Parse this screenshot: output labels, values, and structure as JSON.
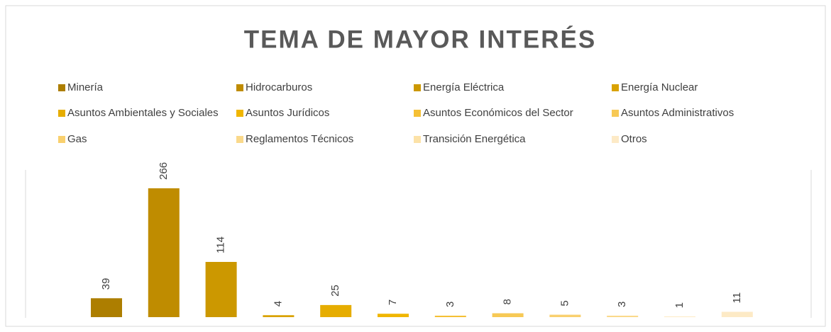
{
  "chart_data": {
    "type": "bar",
    "title": "TEMA DE MAYOR INTERÉS",
    "series": [
      {
        "name": "Minería",
        "color": "#ad7e00",
        "values": [
          39
        ]
      },
      {
        "name": "Hidrocarburos",
        "color": "#bf8c00",
        "values": [
          266
        ]
      },
      {
        "name": "Energía Eléctrica",
        "color": "#cc9800",
        "values": [
          114
        ]
      },
      {
        "name": "Energía Nuclear",
        "color": "#d9a200",
        "values": [
          4
        ]
      },
      {
        "name": "Asuntos Ambientales y Sociales",
        "color": "#e6ad00",
        "values": [
          25
        ]
      },
      {
        "name": "Asuntos Jurídicos",
        "color": "#f0b600",
        "values": [
          7
        ]
      },
      {
        "name": "Asuntos Económicos del Sector",
        "color": "#f5c035",
        "values": [
          3
        ]
      },
      {
        "name": "Asuntos Administrativos",
        "color": "#f7c955",
        "values": [
          8
        ]
      },
      {
        "name": "Gas",
        "color": "#f9d06e",
        "values": [
          5
        ]
      },
      {
        "name": "Reglamentos Técnicos",
        "color": "#fad98b",
        "values": [
          3
        ]
      },
      {
        "name": "Transición Energética",
        "color": "#fce2a8",
        "values": [
          1
        ]
      },
      {
        "name": "Otros",
        "color": "#fdeac6",
        "values": [
          11
        ]
      }
    ]
  }
}
